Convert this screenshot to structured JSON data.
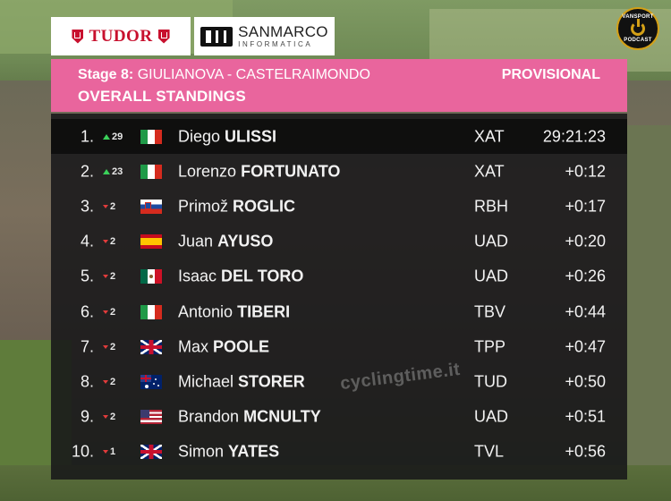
{
  "sponsors": {
    "tudor": "TUDOR",
    "sanmarco_name": "SANMARCO",
    "sanmarco_sub": "INFORMATICA"
  },
  "badge": {
    "top": "VANSPORT",
    "bottom": "PODCAST"
  },
  "header": {
    "stage_prefix": "Stage 8:",
    "stage_route": "GIULIANOVA - CASTELRAIMONDO",
    "title": "OVERALL STANDINGS",
    "status": "PROVISIONAL"
  },
  "colors": {
    "header_pink": "#e9659d",
    "up_arrow": "#3bd15a",
    "down_arrow": "#e23b3b"
  },
  "rows": [
    {
      "pos": "1.",
      "dir": "up",
      "change": "29",
      "flag": "italy-flag",
      "first": "Diego",
      "last": "ULISSI",
      "team": "XAT",
      "time": "29:21:23"
    },
    {
      "pos": "2.",
      "dir": "up",
      "change": "23",
      "flag": "italy-flag",
      "first": "Lorenzo",
      "last": "FORTUNATO",
      "team": "XAT",
      "time": "+0:12"
    },
    {
      "pos": "3.",
      "dir": "down",
      "change": "2",
      "flag": "slovenia-flag",
      "first": "Primož",
      "last": "ROGLIC",
      "team": "RBH",
      "time": "+0:17"
    },
    {
      "pos": "4.",
      "dir": "down",
      "change": "2",
      "flag": "spain-flag",
      "first": "Juan",
      "last": "AYUSO",
      "team": "UAD",
      "time": "+0:20"
    },
    {
      "pos": "5.",
      "dir": "down",
      "change": "2",
      "flag": "mexico-flag",
      "first": "Isaac",
      "last": "DEL TORO",
      "team": "UAD",
      "time": "+0:26"
    },
    {
      "pos": "6.",
      "dir": "down",
      "change": "2",
      "flag": "italy-flag",
      "first": "Antonio",
      "last": "TIBERI",
      "team": "TBV",
      "time": "+0:44"
    },
    {
      "pos": "7.",
      "dir": "down",
      "change": "2",
      "flag": "uk-flag",
      "first": "Max",
      "last": "POOLE",
      "team": "TPP",
      "time": "+0:47"
    },
    {
      "pos": "8.",
      "dir": "down",
      "change": "2",
      "flag": "australia-flag",
      "first": "Michael",
      "last": "STORER",
      "team": "TUD",
      "time": "+0:50"
    },
    {
      "pos": "9.",
      "dir": "down",
      "change": "2",
      "flag": "usa-flag",
      "first": "Brandon",
      "last": "MCNULTY",
      "team": "UAD",
      "time": "+0:51"
    },
    {
      "pos": "10.",
      "dir": "down",
      "change": "1",
      "flag": "uk-flag",
      "first": "Simon",
      "last": "YATES",
      "team": "TVL",
      "time": "+0:56"
    }
  ],
  "watermark": "cyclingtime.it"
}
